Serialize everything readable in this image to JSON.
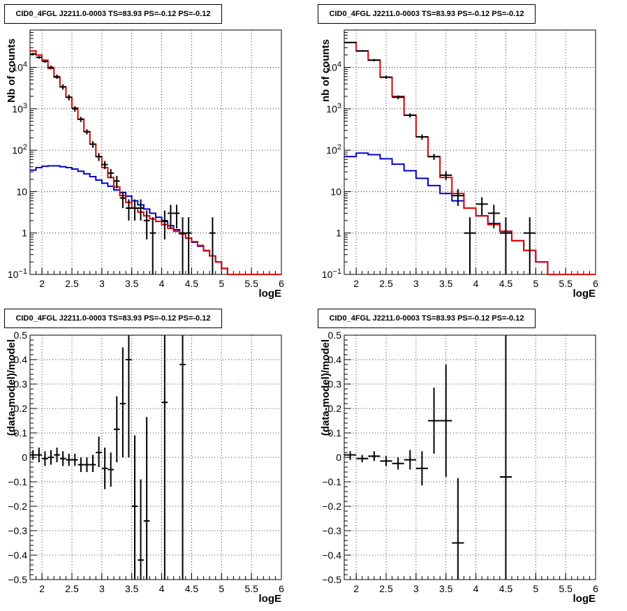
{
  "colors": {
    "data": "#000000",
    "total_model": "#e00000",
    "component_model": "#0000cc",
    "grid": "#000000"
  },
  "chart_data": [
    {
      "type": "line",
      "title": "CID0_4FGL J2211.0-0003 TS=83.93 PS=-0.12 PS=-0.12",
      "xlabel": "logE",
      "ylabel": "Nb of counts",
      "log_y": true,
      "grid": true,
      "xlim": [
        1.8,
        6
      ],
      "ylim": [
        0.1,
        80000
      ],
      "x_ticks": [
        "2",
        "2.5",
        "3",
        "3.5",
        "4",
        "4.5",
        "5",
        "5.5",
        "6"
      ],
      "y_ticks": [
        {
          "value": 0.1,
          "label": "10",
          "sup": "−1"
        },
        {
          "value": 1,
          "label": "1",
          "sup": ""
        },
        {
          "value": 10,
          "label": "10",
          "sup": ""
        },
        {
          "value": 100,
          "label": "10",
          "sup": "2"
        },
        {
          "value": 1000,
          "label": "10",
          "sup": "3"
        },
        {
          "value": 10000,
          "label": "10",
          "sup": "4"
        }
      ],
      "bin_width": 0.1,
      "step_series": [
        {
          "color": "#e00000",
          "x": [
            1.8,
            1.9,
            2.0,
            2.1,
            2.2,
            2.3,
            2.4,
            2.5,
            2.6,
            2.7,
            2.8,
            2.9,
            3.0,
            3.1,
            3.2,
            3.3,
            3.4,
            3.5,
            3.6,
            3.7,
            3.8,
            3.9,
            4.0,
            4.1,
            4.2,
            4.3,
            4.4,
            4.5,
            4.6,
            4.7,
            4.8,
            4.9,
            5.0,
            5.1,
            5.2,
            5.3,
            5.4,
            5.5,
            5.6,
            5.7,
            5.8,
            5.9
          ],
          "y": [
            25000,
            20000,
            15000,
            9500,
            5800,
            3400,
            1900,
            1050,
            560,
            280,
            140,
            70,
            38,
            22,
            13,
            8,
            5.5,
            4,
            3.2,
            2.6,
            2.2,
            1.9,
            1.6,
            1.3,
            1.1,
            0.95,
            0.75,
            0.62,
            0.5,
            0.38,
            0.28,
            0.2,
            0.14,
            0.1,
            0.1,
            0.1,
            0.1,
            0.1,
            0.1,
            0.1,
            0.1,
            0.1
          ]
        },
        {
          "color": "#0000cc",
          "x": [
            1.8,
            1.9,
            2.0,
            2.1,
            2.2,
            2.3,
            2.4,
            2.5,
            2.6,
            2.7,
            2.8,
            2.9,
            3.0,
            3.1,
            3.2,
            3.3,
            3.4,
            3.5,
            3.6,
            3.7,
            3.8,
            3.9,
            4.0,
            4.1,
            4.2,
            4.3,
            4.4,
            4.5,
            4.6,
            4.7,
            4.8,
            4.9,
            5.0,
            5.1,
            5.2,
            5.3,
            5.4,
            5.5,
            5.6,
            5.7,
            5.8,
            5.9
          ],
          "y": [
            33,
            38,
            41,
            42,
            42,
            40,
            38,
            35,
            31,
            27,
            23,
            19,
            16,
            13.5,
            11,
            9.5,
            7.8,
            6,
            4.8,
            3.8,
            3,
            2.4,
            1.9,
            1.5,
            1.2,
            0.95,
            0.75,
            0.6,
            0.48,
            0.37,
            0.28,
            0.2,
            0.14,
            0.1,
            0.1,
            0.1,
            0.1,
            0.1,
            0.1,
            0.1,
            0.1,
            0.1
          ]
        }
      ],
      "points": [
        {
          "x": 1.85,
          "y": 21000,
          "lo": 19500,
          "hi": 22500,
          "dx": 0.05
        },
        {
          "x": 1.95,
          "y": 17500,
          "lo": 16200,
          "hi": 18800,
          "dx": 0.05
        },
        {
          "x": 2.05,
          "y": 14000,
          "lo": 12900,
          "hi": 15100,
          "dx": 0.05
        },
        {
          "x": 2.15,
          "y": 10000,
          "lo": 9000,
          "hi": 11000,
          "dx": 0.05
        },
        {
          "x": 2.25,
          "y": 6000,
          "lo": 5300,
          "hi": 6700,
          "dx": 0.05
        },
        {
          "x": 2.35,
          "y": 3400,
          "lo": 2900,
          "hi": 3900,
          "dx": 0.05
        },
        {
          "x": 2.45,
          "y": 1900,
          "lo": 1600,
          "hi": 2200,
          "dx": 0.05
        },
        {
          "x": 2.55,
          "y": 1000,
          "lo": 850,
          "hi": 1150,
          "dx": 0.05
        },
        {
          "x": 2.65,
          "y": 560,
          "lo": 480,
          "hi": 640,
          "dx": 0.05
        },
        {
          "x": 2.75,
          "y": 280,
          "lo": 240,
          "hi": 320,
          "dx": 0.05
        },
        {
          "x": 2.85,
          "y": 140,
          "lo": 115,
          "hi": 165,
          "dx": 0.05
        },
        {
          "x": 2.95,
          "y": 70,
          "lo": 55,
          "hi": 85,
          "dx": 0.05
        },
        {
          "x": 3.05,
          "y": 45,
          "lo": 35,
          "hi": 55,
          "dx": 0.05
        },
        {
          "x": 3.15,
          "y": 28,
          "lo": 21,
          "hi": 35,
          "dx": 0.05
        },
        {
          "x": 3.25,
          "y": 18,
          "lo": 12,
          "hi": 24,
          "dx": 0.05
        },
        {
          "x": 3.35,
          "y": 7,
          "lo": 4,
          "hi": 10,
          "dx": 0.05
        },
        {
          "x": 3.45,
          "y": 4,
          "lo": 2,
          "hi": 6.5,
          "dx": 0.05
        },
        {
          "x": 3.55,
          "y": 4,
          "lo": 2,
          "hi": 6.5,
          "dx": 0.05
        },
        {
          "x": 3.65,
          "y": 4,
          "lo": 2,
          "hi": 6.5,
          "dx": 0.05
        },
        {
          "x": 3.75,
          "y": 2,
          "lo": 0.7,
          "hi": 3.5,
          "dx": 0.05
        },
        {
          "x": 3.85,
          "y": 1,
          "lo": 0.1,
          "hi": 2.4,
          "dx": 0.05
        },
        {
          "x": 4.05,
          "y": 2,
          "lo": 0.7,
          "hi": 3.5,
          "dx": 0.05
        },
        {
          "x": 4.15,
          "y": 3,
          "lo": 1.3,
          "hi": 4.8,
          "dx": 0.05
        },
        {
          "x": 4.25,
          "y": 3,
          "lo": 1.3,
          "hi": 4.8,
          "dx": 0.05
        },
        {
          "x": 4.35,
          "y": 1,
          "lo": 0.1,
          "hi": 2.4,
          "dx": 0.05
        },
        {
          "x": 4.45,
          "y": 1,
          "lo": 0.1,
          "hi": 2.4,
          "dx": 0.05
        },
        {
          "x": 4.85,
          "y": 1,
          "lo": 0.1,
          "hi": 2.4,
          "dx": 0.05
        }
      ]
    },
    {
      "type": "line",
      "title": "CID0_4FGL J2211.0-0003 TS=83.93 PS=-0.12 PS=-0.12",
      "xlabel": "logE",
      "ylabel": "nb of counts",
      "log_y": true,
      "grid": true,
      "xlim": [
        1.8,
        6
      ],
      "ylim": [
        0.1,
        80000
      ],
      "x_ticks": [
        "2",
        "2.5",
        "3",
        "3.5",
        "4",
        "4.5",
        "5",
        "5.5",
        "6"
      ],
      "y_ticks": [
        {
          "value": 0.1,
          "label": "10",
          "sup": "−1"
        },
        {
          "value": 1,
          "label": "1",
          "sup": ""
        },
        {
          "value": 10,
          "label": "10",
          "sup": ""
        },
        {
          "value": 100,
          "label": "10",
          "sup": "2"
        },
        {
          "value": 1000,
          "label": "10",
          "sup": "3"
        },
        {
          "value": 10000,
          "label": "10",
          "sup": "4"
        }
      ],
      "bin_width": 0.2,
      "step_series": [
        {
          "color": "#e00000",
          "x": [
            1.8,
            2.0,
            2.2,
            2.4,
            2.6,
            2.8,
            3.0,
            3.2,
            3.4,
            3.6,
            3.8,
            4.0,
            4.2,
            4.4,
            4.6,
            4.8,
            5.0,
            5.2,
            5.4,
            5.6,
            5.8
          ],
          "y": [
            40000,
            25000,
            15000,
            5800,
            2000,
            700,
            210,
            70,
            22,
            9,
            4,
            2.6,
            1.6,
            1.1,
            0.65,
            0.38,
            0.2,
            0.1,
            0.1,
            0.1,
            0.1
          ]
        },
        {
          "color": "#0000cc",
          "x": [
            1.8,
            2.0,
            2.2,
            2.4,
            2.6,
            2.8,
            3.0,
            3.2,
            3.4,
            3.6,
            3.8,
            4.0,
            4.2,
            4.4,
            4.6,
            4.8,
            5.0,
            5.2,
            5.4,
            5.6,
            5.8
          ],
          "y": [
            70,
            85,
            78,
            62,
            46,
            32,
            21,
            14,
            9,
            6,
            4,
            2.6,
            1.7,
            1.1,
            0.65,
            0.38,
            0.2,
            0.1,
            0.1,
            0.1,
            0.1
          ]
        }
      ],
      "points": [
        {
          "x": 1.9,
          "y": 40000,
          "lo": 38500,
          "hi": 41500,
          "dx": 0.1
        },
        {
          "x": 2.1,
          "y": 25000,
          "lo": 23800,
          "hi": 26200,
          "dx": 0.1
        },
        {
          "x": 2.3,
          "y": 15000,
          "lo": 14000,
          "hi": 16000,
          "dx": 0.1
        },
        {
          "x": 2.5,
          "y": 5800,
          "lo": 5300,
          "hi": 6300,
          "dx": 0.1
        },
        {
          "x": 2.7,
          "y": 1900,
          "lo": 1700,
          "hi": 2100,
          "dx": 0.1
        },
        {
          "x": 2.9,
          "y": 700,
          "lo": 620,
          "hi": 780,
          "dx": 0.1
        },
        {
          "x": 3.1,
          "y": 210,
          "lo": 180,
          "hi": 240,
          "dx": 0.1
        },
        {
          "x": 3.3,
          "y": 70,
          "lo": 58,
          "hi": 82,
          "dx": 0.1
        },
        {
          "x": 3.5,
          "y": 25,
          "lo": 19,
          "hi": 31,
          "dx": 0.1
        },
        {
          "x": 3.7,
          "y": 8,
          "lo": 4.5,
          "hi": 11.5,
          "dx": 0.1
        },
        {
          "x": 3.9,
          "y": 1,
          "lo": 0.1,
          "hi": 2.4,
          "dx": 0.1
        },
        {
          "x": 4.1,
          "y": 5,
          "lo": 2.7,
          "hi": 7.3,
          "dx": 0.1
        },
        {
          "x": 4.3,
          "y": 3,
          "lo": 1.3,
          "hi": 4.8,
          "dx": 0.1
        },
        {
          "x": 4.5,
          "y": 1,
          "lo": 0.1,
          "hi": 2.4,
          "dx": 0.1
        },
        {
          "x": 4.9,
          "y": 1,
          "lo": 0.1,
          "hi": 2.4,
          "dx": 0.1
        }
      ]
    },
    {
      "type": "scatter",
      "title": "CID0_4FGL J2211.0-0003 TS=83.93 PS=-0.12 PS=-0.12",
      "xlabel": "logE",
      "ylabel": "(data-model)/model",
      "log_y": false,
      "grid": true,
      "xlim": [
        1.8,
        6
      ],
      "ylim": [
        -0.5,
        0.5
      ],
      "x_ticks": [
        "2",
        "2.5",
        "3",
        "3.5",
        "4",
        "4.5",
        "5",
        "5.5",
        "6"
      ],
      "y_ticks": [
        {
          "value": -0.5,
          "label": "−0.5"
        },
        {
          "value": -0.4,
          "label": "−0.4"
        },
        {
          "value": -0.3,
          "label": "−0.3"
        },
        {
          "value": -0.2,
          "label": "−0.2"
        },
        {
          "value": -0.1,
          "label": "−0.1"
        },
        {
          "value": 0,
          "label": "0"
        },
        {
          "value": 0.1,
          "label": "0.1"
        },
        {
          "value": 0.2,
          "label": "0.2"
        },
        {
          "value": 0.3,
          "label": "0.3"
        },
        {
          "value": 0.4,
          "label": "0.4"
        },
        {
          "value": 0.5,
          "label": "0.5"
        }
      ],
      "points": [
        {
          "x": 1.85,
          "y": 0.01,
          "lo": -0.01,
          "hi": 0.03,
          "dx": 0.05
        },
        {
          "x": 1.95,
          "y": 0.01,
          "lo": -0.02,
          "hi": 0.04,
          "dx": 0.05
        },
        {
          "x": 2.05,
          "y": -0.005,
          "lo": -0.035,
          "hi": 0.025,
          "dx": 0.05
        },
        {
          "x": 2.15,
          "y": 0.0,
          "lo": -0.03,
          "hi": 0.03,
          "dx": 0.05
        },
        {
          "x": 2.25,
          "y": 0.01,
          "lo": -0.02,
          "hi": 0.04,
          "dx": 0.05
        },
        {
          "x": 2.35,
          "y": -0.005,
          "lo": -0.035,
          "hi": 0.025,
          "dx": 0.05
        },
        {
          "x": 2.45,
          "y": -0.01,
          "lo": -0.035,
          "hi": 0.015,
          "dx": 0.05
        },
        {
          "x": 2.55,
          "y": -0.01,
          "lo": -0.035,
          "hi": 0.015,
          "dx": 0.05
        },
        {
          "x": 2.65,
          "y": -0.03,
          "lo": -0.06,
          "hi": 0.0,
          "dx": 0.05
        },
        {
          "x": 2.75,
          "y": -0.03,
          "lo": -0.06,
          "hi": 0.0,
          "dx": 0.05
        },
        {
          "x": 2.85,
          "y": -0.03,
          "lo": -0.06,
          "hi": 0.01,
          "dx": 0.05
        },
        {
          "x": 2.95,
          "y": 0.02,
          "lo": -0.04,
          "hi": 0.085,
          "dx": 0.05
        },
        {
          "x": 3.05,
          "y": -0.045,
          "lo": -0.13,
          "hi": 0.04,
          "dx": 0.05
        },
        {
          "x": 3.15,
          "y": -0.05,
          "lo": -0.12,
          "hi": 0.02,
          "dx": 0.05
        },
        {
          "x": 3.25,
          "y": 0.115,
          "lo": -0.02,
          "hi": 0.25,
          "dx": 0.05
        },
        {
          "x": 3.35,
          "y": 0.22,
          "lo": 0.0,
          "hi": 0.45,
          "dx": 0.05
        },
        {
          "x": 3.45,
          "y": 0.4,
          "lo": 0.0,
          "hi": 0.5,
          "dx": 0.05
        },
        {
          "x": 3.55,
          "y": -0.2,
          "lo": -0.5,
          "hi": 0.09,
          "dx": 0.05
        },
        {
          "x": 3.65,
          "y": -0.42,
          "lo": -0.5,
          "hi": -0.09,
          "dx": 0.05
        },
        {
          "x": 3.75,
          "y": -0.26,
          "lo": -0.5,
          "hi": 0.165,
          "dx": 0.05
        },
        {
          "x": 4.05,
          "y": 0.225,
          "lo": -0.5,
          "hi": 0.5,
          "dx": 0.05
        },
        {
          "x": 4.35,
          "y": 0.38,
          "lo": -0.5,
          "hi": 0.5,
          "dx": 0.05
        }
      ]
    },
    {
      "type": "scatter",
      "title": "CID0_4FGL J2211.0-0003 TS=83.93 PS=-0.12 PS=-0.12",
      "xlabel": "logE",
      "ylabel": "(data-model)/model",
      "log_y": false,
      "grid": true,
      "xlim": [
        1.8,
        6
      ],
      "ylim": [
        -0.5,
        0.5
      ],
      "x_ticks": [
        "2",
        "2.5",
        "3",
        "3.5",
        "4",
        "4.5",
        "5",
        "5.5",
        "6"
      ],
      "y_ticks": [
        {
          "value": -0.5,
          "label": "−0.5"
        },
        {
          "value": -0.4,
          "label": "−0.4"
        },
        {
          "value": -0.3,
          "label": "−0.3"
        },
        {
          "value": -0.2,
          "label": "−0.2"
        },
        {
          "value": -0.1,
          "label": "−0.1"
        },
        {
          "value": 0,
          "label": "0"
        },
        {
          "value": 0.1,
          "label": "0.1"
        },
        {
          "value": 0.2,
          "label": "0.2"
        },
        {
          "value": 0.3,
          "label": "0.3"
        },
        {
          "value": 0.4,
          "label": "0.4"
        },
        {
          "value": 0.5,
          "label": "0.5"
        }
      ],
      "points": [
        {
          "x": 1.9,
          "y": 0.01,
          "lo": -0.01,
          "hi": 0.025,
          "dx": 0.1
        },
        {
          "x": 2.1,
          "y": -0.005,
          "lo": -0.02,
          "hi": 0.01,
          "dx": 0.1
        },
        {
          "x": 2.3,
          "y": 0.005,
          "lo": -0.015,
          "hi": 0.025,
          "dx": 0.1
        },
        {
          "x": 2.5,
          "y": -0.015,
          "lo": -0.035,
          "hi": 0.005,
          "dx": 0.1
        },
        {
          "x": 2.7,
          "y": -0.025,
          "lo": -0.05,
          "hi": 0.0,
          "dx": 0.1
        },
        {
          "x": 2.9,
          "y": -0.01,
          "lo": -0.05,
          "hi": 0.03,
          "dx": 0.1
        },
        {
          "x": 3.1,
          "y": -0.045,
          "lo": -0.115,
          "hi": 0.025,
          "dx": 0.1
        },
        {
          "x": 3.3,
          "y": 0.15,
          "lo": 0.015,
          "hi": 0.285,
          "dx": 0.1
        },
        {
          "x": 3.5,
          "y": 0.15,
          "lo": -0.08,
          "hi": 0.38,
          "dx": 0.1
        },
        {
          "x": 3.7,
          "y": -0.35,
          "lo": -0.5,
          "hi": -0.085,
          "dx": 0.1
        },
        {
          "x": 4.5,
          "y": -0.08,
          "lo": -0.5,
          "hi": 0.5,
          "dx": 0.1
        }
      ]
    }
  ]
}
